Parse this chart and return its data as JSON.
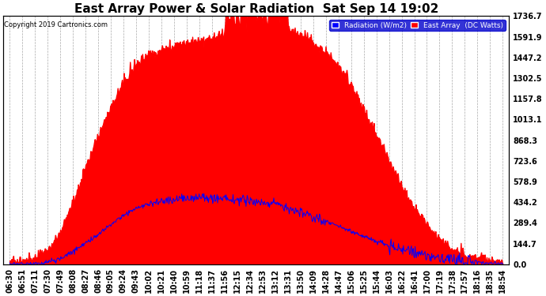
{
  "title": "East Array Power & Solar Radiation  Sat Sep 14 19:02",
  "copyright": "Copyright 2019 Cartronics.com",
  "legend_labels": [
    "Radiation (W/m2)",
    "East Array  (DC Watts)"
  ],
  "legend_colors": [
    "#0000ff",
    "#ff0000"
  ],
  "ylabel_right_ticks": [
    0.0,
    144.7,
    289.4,
    434.2,
    578.9,
    723.6,
    868.3,
    1013.1,
    1157.8,
    1302.5,
    1447.2,
    1591.9,
    1736.7
  ],
  "ymax": 1736.7,
  "ymin": 0.0,
  "background_color": "#ffffff",
  "plot_background": "#ffffff",
  "grid_color": "#aaaaaa",
  "red_fill_color": "#ff0000",
  "blue_line_color": "#0000ff",
  "title_fontsize": 11,
  "tick_fontsize": 7,
  "x_tick_labels": [
    "06:30",
    "06:51",
    "07:11",
    "07:30",
    "07:49",
    "08:08",
    "08:27",
    "08:46",
    "09:05",
    "09:24",
    "09:43",
    "10:02",
    "10:21",
    "10:40",
    "10:59",
    "11:18",
    "11:37",
    "11:56",
    "12:15",
    "12:34",
    "12:53",
    "13:12",
    "13:31",
    "13:50",
    "14:09",
    "14:28",
    "14:47",
    "15:06",
    "15:25",
    "15:44",
    "16:03",
    "16:22",
    "16:41",
    "17:00",
    "17:19",
    "17:38",
    "17:57",
    "18:16",
    "18:35",
    "18:54"
  ],
  "red_envelope": [
    0,
    0,
    30,
    80,
    200,
    420,
    680,
    900,
    1100,
    1280,
    1400,
    1470,
    1500,
    1520,
    1540,
    1560,
    1580,
    1610,
    1630,
    1640,
    1650,
    1660,
    1640,
    1600,
    1550,
    1480,
    1380,
    1250,
    1080,
    900,
    720,
    540,
    380,
    260,
    160,
    90,
    50,
    20,
    5,
    0
  ],
  "blue_values": [
    0,
    0,
    5,
    15,
    40,
    90,
    150,
    210,
    280,
    340,
    390,
    420,
    440,
    455,
    460,
    462,
    462,
    458,
    450,
    440,
    430,
    420,
    390,
    365,
    335,
    300,
    265,
    228,
    195,
    162,
    130,
    100,
    75,
    58,
    45,
    35,
    25,
    15,
    8,
    2
  ]
}
